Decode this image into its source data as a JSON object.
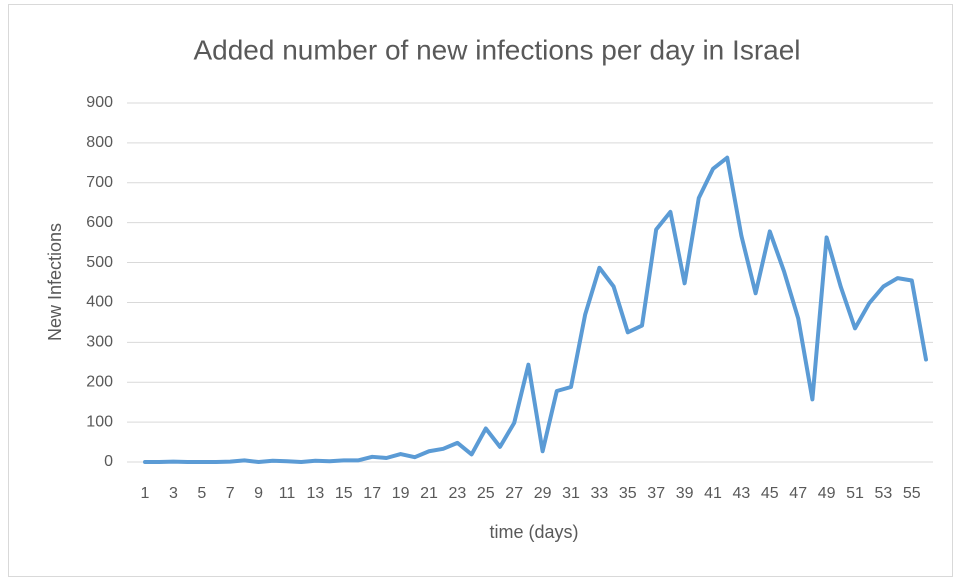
{
  "chart_data": {
    "type": "line",
    "title": "Added number of new infections per day in Israel",
    "x_label": "time (days)",
    "y_label": "New Infections",
    "categories": [
      "1",
      null,
      "3",
      null,
      "5",
      null,
      "7",
      null,
      "9",
      null,
      "11",
      null,
      "13",
      null,
      "15",
      null,
      "17",
      null,
      "19",
      null,
      "21",
      null,
      "23",
      null,
      "25",
      null,
      "27",
      null,
      "29",
      null,
      "31",
      null,
      "33",
      null,
      "35",
      null,
      "37",
      null,
      "39",
      null,
      "41",
      null,
      "43",
      null,
      "45",
      null,
      "47",
      null,
      "49",
      null,
      "51",
      null,
      "53",
      null,
      "55",
      null
    ],
    "values": [
      0,
      0,
      1,
      0,
      0,
      0,
      1,
      4,
      0,
      3,
      2,
      0,
      3,
      2,
      4,
      4,
      13,
      10,
      20,
      12,
      27,
      33,
      48,
      19,
      84,
      38,
      98,
      244,
      27,
      178,
      188,
      370,
      487,
      440,
      325,
      342,
      583,
      627,
      448,
      662,
      735,
      763,
      567,
      423,
      578,
      478,
      360,
      157,
      563,
      439,
      335,
      398,
      440,
      461,
      455,
      257
    ],
    "color": "#5b9bd5",
    "ylim": [
      0,
      900
    ],
    "yticks": [
      0,
      100,
      200,
      300,
      400,
      500,
      600,
      700,
      800,
      900
    ],
    "grid": true
  }
}
